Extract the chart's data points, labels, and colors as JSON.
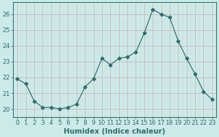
{
  "x": [
    0,
    1,
    2,
    3,
    4,
    5,
    6,
    7,
    8,
    9,
    10,
    11,
    12,
    13,
    14,
    15,
    16,
    17,
    18,
    19,
    20,
    21,
    22,
    23
  ],
  "y": [
    21.9,
    21.6,
    20.5,
    20.1,
    20.1,
    20.0,
    20.1,
    20.3,
    21.4,
    21.9,
    23.2,
    22.8,
    23.2,
    23.3,
    23.6,
    24.8,
    26.3,
    26.0,
    25.8,
    24.3,
    23.2,
    22.2,
    21.1,
    20.6
  ],
  "line_color": "#2d6e6e",
  "marker": "D",
  "marker_size": 2.5,
  "background_color": "#cceae8",
  "grid_color_major": "#c8b8b8",
  "grid_color_minor": "#ddd0d0",
  "xlabel": "Humidex (Indice chaleur)",
  "ylabel": "",
  "xlim": [
    -0.5,
    23.5
  ],
  "ylim": [
    19.5,
    26.75
  ],
  "yticks": [
    20,
    21,
    22,
    23,
    24,
    25,
    26
  ],
  "xticks": [
    0,
    1,
    2,
    3,
    4,
    5,
    6,
    7,
    8,
    9,
    10,
    11,
    12,
    13,
    14,
    15,
    16,
    17,
    18,
    19,
    20,
    21,
    22,
    23
  ],
  "tick_color": "#2d6e6e",
  "label_fontsize": 6.5,
  "xlabel_fontsize": 7.5
}
